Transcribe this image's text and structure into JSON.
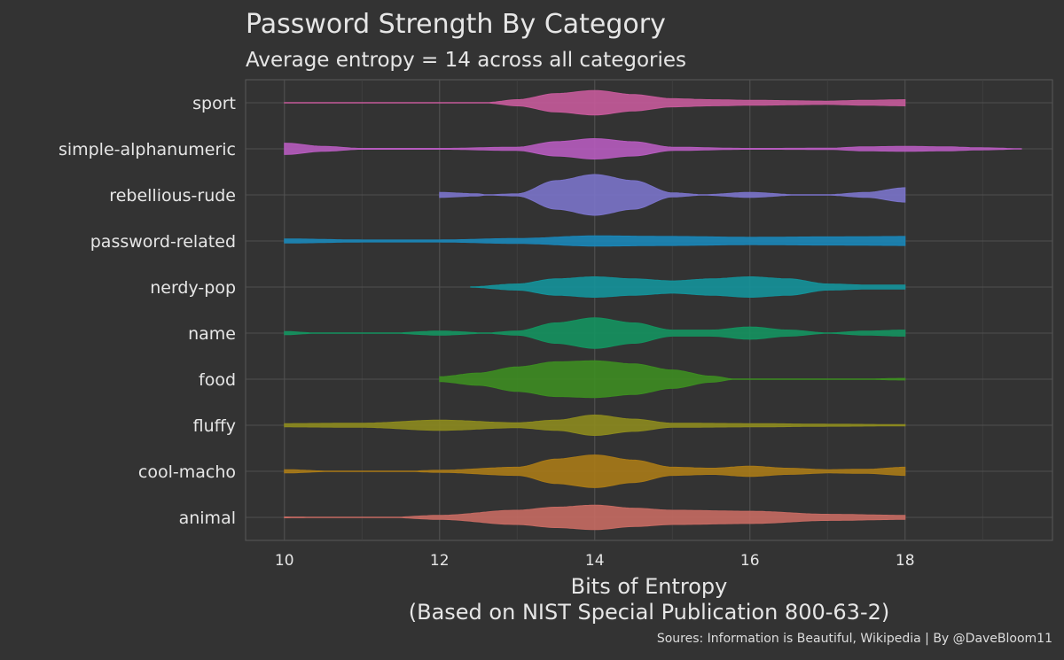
{
  "chart_data": {
    "type": "violin",
    "title": "Password Strength By Category",
    "subtitle": "Average entropy = 14 across all categories",
    "xlabel": "Bits of Entropy",
    "xlabel_line2": "(Based on NIST Special Publication 800-63-2)",
    "caption": "Soures: Information is Beautiful, Wikipedia  |  By @DaveBloom11",
    "xlim": [
      9.5,
      19.9
    ],
    "x_ticks": [
      10,
      12,
      14,
      16,
      18
    ],
    "x_tick_labels": [
      "10",
      "12",
      "14",
      "16",
      "18"
    ],
    "grid": true,
    "categories": [
      "sport",
      "simple-alphanumeric",
      "rebellious-rude",
      "password-related",
      "nerdy-pop",
      "name",
      "food",
      "fluffy",
      "cool-macho",
      "animal"
    ],
    "series": [
      {
        "category": "sport",
        "color": "#c55a9a",
        "x": [
          10,
          10.1,
          12.6,
          13,
          13.5,
          14,
          14.5,
          15,
          15.5,
          16,
          17,
          17.5,
          18
        ],
        "width": [
          0.01,
          0.01,
          0.01,
          0.15,
          0.45,
          0.6,
          0.4,
          0.2,
          0.15,
          0.12,
          0.08,
          0.12,
          0.15
        ]
      },
      {
        "category": "simple-alphanumeric",
        "color": "#b65bbe",
        "x": [
          10,
          10.5,
          11,
          12,
          13,
          13.5,
          14,
          14.5,
          15,
          16,
          17,
          17.5,
          18,
          18.5,
          19,
          19.5
        ],
        "width": [
          0.28,
          0.12,
          0.02,
          0.02,
          0.08,
          0.35,
          0.5,
          0.35,
          0.08,
          0.02,
          0.03,
          0.1,
          0.12,
          0.1,
          0.05,
          0.01
        ]
      },
      {
        "category": "rebellious-rude",
        "color": "#7a73c9",
        "x": [
          12,
          12.5,
          12.6,
          13,
          13.5,
          14,
          14.5,
          15,
          15.4,
          16,
          16.6,
          17,
          17.5,
          18
        ],
        "width": [
          0.12,
          0.05,
          0.01,
          0.05,
          0.7,
          1.0,
          0.7,
          0.1,
          0.01,
          0.12,
          0.01,
          0.01,
          0.12,
          0.35
        ]
      },
      {
        "category": "password-related",
        "color": "#1a86b8",
        "x": [
          10,
          11,
          12,
          13,
          14,
          15,
          16,
          17,
          18
        ],
        "width": [
          0.1,
          0.05,
          0.05,
          0.12,
          0.25,
          0.22,
          0.18,
          0.2,
          0.22
        ]
      },
      {
        "category": "nerdy-pop",
        "color": "#14929a",
        "x": [
          12.4,
          13,
          13.5,
          14,
          14.5,
          15,
          15.5,
          16,
          16.5,
          17,
          17.5,
          18
        ],
        "width": [
          0.01,
          0.15,
          0.4,
          0.5,
          0.4,
          0.3,
          0.4,
          0.5,
          0.4,
          0.15,
          0.1,
          0.1
        ]
      },
      {
        "category": "name",
        "color": "#14925f",
        "x": [
          10,
          10.4,
          11.4,
          12,
          12.6,
          13,
          13.5,
          14,
          14.5,
          15,
          15.5,
          16,
          16.5,
          17,
          17.5,
          18
        ],
        "width": [
          0.08,
          0.01,
          0.01,
          0.1,
          0.01,
          0.1,
          0.5,
          0.75,
          0.5,
          0.15,
          0.15,
          0.3,
          0.15,
          0.01,
          0.1,
          0.15
        ]
      },
      {
        "category": "food",
        "color": "#3d8c21",
        "x": [
          12,
          12.5,
          13,
          13.5,
          14,
          14.5,
          15,
          15.5,
          15.8,
          17.5,
          18
        ],
        "width": [
          0.12,
          0.3,
          0.6,
          0.85,
          0.9,
          0.75,
          0.45,
          0.15,
          0.01,
          0.01,
          0.04
        ]
      },
      {
        "category": "fluffy",
        "color": "#8c8a1e",
        "x": [
          10,
          11,
          12,
          13,
          13.5,
          14,
          14.5,
          15,
          16,
          17,
          18
        ],
        "width": [
          0.08,
          0.1,
          0.25,
          0.12,
          0.25,
          0.5,
          0.3,
          0.1,
          0.08,
          0.05,
          0.03
        ]
      },
      {
        "category": "cool-macho",
        "color": "#a97a17",
        "x": [
          10,
          10.6,
          11.6,
          12,
          13,
          13.5,
          14,
          14.5,
          15,
          15.5,
          16,
          16.5,
          17,
          17.5,
          18
        ],
        "width": [
          0.08,
          0.01,
          0.01,
          0.05,
          0.2,
          0.6,
          0.8,
          0.55,
          0.2,
          0.15,
          0.25,
          0.15,
          0.08,
          0.1,
          0.2
        ]
      },
      {
        "category": "animal",
        "color": "#c56a62",
        "x": [
          10,
          10.5,
          11.4,
          12,
          13,
          13.5,
          14,
          14.5,
          15,
          16,
          17,
          18
        ],
        "width": [
          0.02,
          0.01,
          0.01,
          0.1,
          0.35,
          0.5,
          0.6,
          0.45,
          0.35,
          0.3,
          0.15,
          0.1
        ]
      }
    ]
  }
}
